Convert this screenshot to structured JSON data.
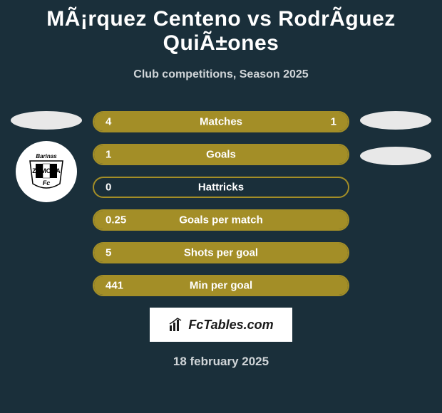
{
  "title": "MÃ¡rquez Centeno vs RodrÃ­guez QuiÃ±ones",
  "subtitle": "Club competitions, Season 2025",
  "date": "18 february 2025",
  "left_player": {
    "club_name": "ZAMORA",
    "club_location": "Barinas"
  },
  "stats": [
    {
      "left_value": "4",
      "label": "Matches",
      "right_value": "1",
      "left_pct": 80,
      "right_pct": 20
    },
    {
      "left_value": "1",
      "label": "Goals",
      "right_value": "",
      "left_pct": 100,
      "right_pct": 0
    },
    {
      "left_value": "0",
      "label": "Hattricks",
      "right_value": "",
      "left_pct": 0,
      "right_pct": 0
    },
    {
      "left_value": "0.25",
      "label": "Goals per match",
      "right_value": "",
      "left_pct": 100,
      "right_pct": 0
    },
    {
      "left_value": "5",
      "label": "Shots per goal",
      "right_value": "",
      "left_pct": 100,
      "right_pct": 0
    },
    {
      "left_value": "441",
      "label": "Min per goal",
      "right_value": "",
      "left_pct": 100,
      "right_pct": 0
    }
  ],
  "colors": {
    "bg": "#1a2f3a",
    "bar": "#a38e27",
    "text": "#ffffff",
    "subtext": "#d0d5d8",
    "ellipse": "#e8e8e8",
    "footer_bg": "#ffffff"
  },
  "footer_brand": "FcTables.com"
}
